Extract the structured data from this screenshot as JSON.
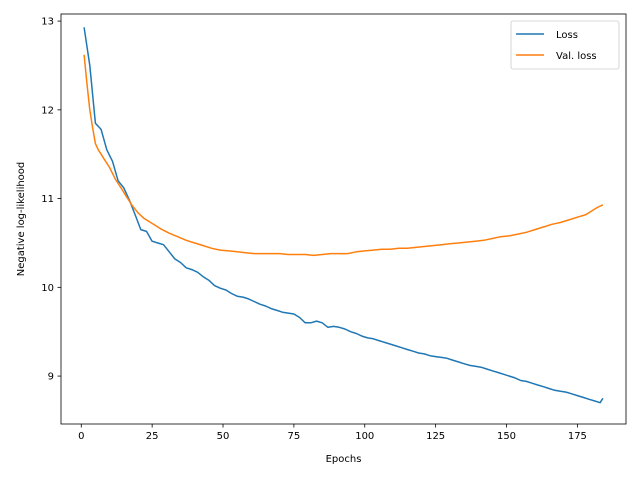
{
  "chart_data": {
    "type": "line",
    "title": "",
    "xlabel": "Epochs",
    "ylabel": "Negative log-likelihood",
    "xlim": [
      -7.15,
      192.15
    ],
    "ylim": [
      8.46,
      13.08
    ],
    "x_ticks": [
      0,
      25,
      50,
      75,
      100,
      125,
      150,
      175
    ],
    "y_ticks": [
      9,
      10,
      11,
      12,
      13
    ],
    "grid": false,
    "legend_position": "top-right",
    "colors": {
      "loss": "#1f77b4",
      "val_loss": "#ff7f0e"
    },
    "series": [
      {
        "name": "Loss",
        "x": [
          1,
          3,
          5,
          7,
          9,
          11,
          13,
          15,
          17,
          19,
          21,
          23,
          25,
          27,
          29,
          31,
          33,
          35,
          37,
          39,
          41,
          43,
          45,
          47,
          49,
          51,
          53,
          55,
          57,
          59,
          61,
          63,
          65,
          67,
          69,
          71,
          73,
          75,
          77,
          79,
          81,
          83,
          85,
          87,
          89,
          91,
          93,
          95,
          97,
          99,
          101,
          103,
          105,
          107,
          109,
          111,
          113,
          115,
          117,
          119,
          121,
          123,
          125,
          127,
          129,
          131,
          133,
          135,
          137,
          139,
          141,
          143,
          145,
          147,
          149,
          151,
          153,
          155,
          157,
          159,
          161,
          163,
          165,
          167,
          169,
          171,
          173,
          175,
          177,
          179,
          181,
          183,
          184
        ],
        "values": [
          12.93,
          12.5,
          11.85,
          11.78,
          11.55,
          11.42,
          11.2,
          11.12,
          10.98,
          10.82,
          10.65,
          10.63,
          10.52,
          10.5,
          10.48,
          10.4,
          10.32,
          10.28,
          10.22,
          10.2,
          10.17,
          10.12,
          10.08,
          10.02,
          9.99,
          9.97,
          9.93,
          9.9,
          9.89,
          9.87,
          9.84,
          9.81,
          9.79,
          9.76,
          9.74,
          9.72,
          9.71,
          9.7,
          9.66,
          9.6,
          9.6,
          9.62,
          9.6,
          9.55,
          9.56,
          9.55,
          9.53,
          9.5,
          9.48,
          9.45,
          9.43,
          9.42,
          9.4,
          9.38,
          9.36,
          9.34,
          9.32,
          9.3,
          9.28,
          9.26,
          9.25,
          9.23,
          9.22,
          9.21,
          9.2,
          9.18,
          9.16,
          9.14,
          9.12,
          9.11,
          9.1,
          9.08,
          9.06,
          9.04,
          9.02,
          9.0,
          8.98,
          8.95,
          8.94,
          8.92,
          8.9,
          8.88,
          8.86,
          8.84,
          8.83,
          8.82,
          8.8,
          8.78,
          8.76,
          8.74,
          8.72,
          8.7,
          8.75
        ]
      },
      {
        "name": "Val. loss",
        "x": [
          1,
          2,
          3,
          4,
          5,
          6,
          7,
          8,
          10,
          12,
          14,
          16,
          18,
          20,
          22,
          25,
          28,
          31,
          34,
          37,
          40,
          43,
          46,
          49,
          52,
          55,
          58,
          61,
          64,
          67,
          70,
          73,
          76,
          79,
          82,
          85,
          88,
          91,
          94,
          97,
          100,
          103,
          106,
          109,
          112,
          115,
          118,
          121,
          124,
          127,
          130,
          133,
          136,
          139,
          142,
          145,
          148,
          151,
          154,
          157,
          160,
          163,
          166,
          169,
          172,
          175,
          178,
          180,
          182,
          184
        ],
        "values": [
          12.62,
          12.3,
          12.0,
          11.8,
          11.62,
          11.55,
          11.5,
          11.45,
          11.35,
          11.22,
          11.12,
          11.02,
          10.92,
          10.84,
          10.78,
          10.72,
          10.66,
          10.61,
          10.57,
          10.53,
          10.5,
          10.47,
          10.44,
          10.42,
          10.41,
          10.4,
          10.39,
          10.38,
          10.38,
          10.38,
          10.38,
          10.37,
          10.37,
          10.37,
          10.36,
          10.37,
          10.38,
          10.38,
          10.38,
          10.4,
          10.41,
          10.42,
          10.43,
          10.43,
          10.44,
          10.44,
          10.45,
          10.46,
          10.47,
          10.48,
          10.49,
          10.5,
          10.51,
          10.52,
          10.53,
          10.55,
          10.57,
          10.58,
          10.6,
          10.62,
          10.65,
          10.68,
          10.71,
          10.73,
          10.76,
          10.79,
          10.82,
          10.86,
          10.9,
          10.93
        ]
      }
    ]
  }
}
